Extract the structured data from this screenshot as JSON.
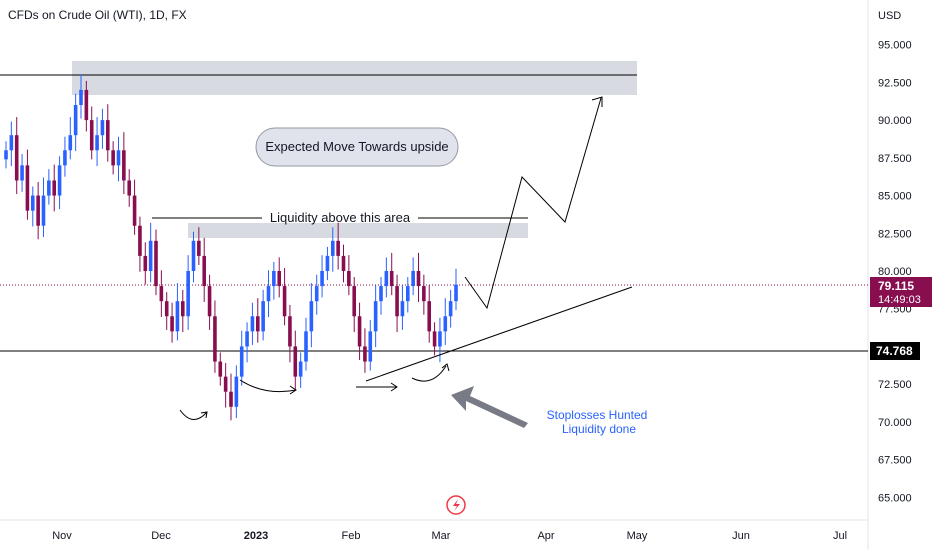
{
  "header": {
    "title": "CFDs on Crude Oil (WTI), 1D, FX"
  },
  "axis": {
    "currency": "USD",
    "y_ticks": [
      "95.000",
      "92.500",
      "90.000",
      "87.500",
      "85.000",
      "82.500",
      "80.000",
      "77.500",
      "72.500",
      "70.000",
      "67.500",
      "65.000"
    ],
    "x_ticks": [
      "Nov",
      "Dec",
      "2023",
      "Feb",
      "Mar",
      "Apr",
      "May",
      "Jun",
      "Jul"
    ]
  },
  "price_labels": {
    "current_price": "79.115",
    "countdown": "14:49:03",
    "level": "74.768"
  },
  "annotations": {
    "expected_move": "Expected Move Towards upside",
    "liquidity": "Liquidity above this area",
    "stoploss_line1": "Stoplosses Hunted",
    "stoploss_line2": "Liquidity done"
  },
  "colors": {
    "up": "#2962ff",
    "down": "#880e4f",
    "current_price_bg": "#880e4f",
    "label_bg": "#000000",
    "arrow": "#787b86",
    "callout_text": "#2962ff"
  },
  "chart_data": {
    "type": "candlestick",
    "title": "CFDs on Crude Oil (WTI), 1D, FX",
    "ylabel": "USD",
    "ylim": [
      63.5,
      97
    ],
    "x_ticks": [
      "Nov",
      "Dec",
      "2023",
      "Feb",
      "Mar",
      "Apr",
      "May",
      "Jun",
      "Jul"
    ],
    "close_series": [
      88,
      89,
      86,
      87,
      84,
      85,
      83,
      85,
      86,
      85,
      87,
      88,
      89,
      91,
      92,
      90,
      88,
      89,
      90,
      88,
      87,
      88,
      86,
      85,
      83,
      81,
      80,
      82,
      79,
      78,
      77,
      76,
      78,
      77,
      80,
      82,
      81,
      79,
      77,
      74,
      73,
      72,
      71,
      73,
      75,
      76,
      77,
      76,
      78,
      79,
      80,
      79,
      77,
      75,
      73,
      74,
      76,
      78,
      79,
      80,
      81,
      82,
      81,
      80,
      79,
      77,
      75,
      74,
      76,
      78,
      79,
      80,
      79,
      77,
      78,
      79,
      80,
      79,
      78,
      76,
      75,
      76,
      77,
      78,
      79.1
    ],
    "horizontal_levels": [
      93.0,
      74.768
    ],
    "current_price": 79.115,
    "zones": [
      {
        "label": "",
        "ymin": 91.8,
        "ymax": 93.8
      },
      {
        "label": "Liquidity above this area",
        "ymin": 82.2,
        "ymax": 83.2
      }
    ]
  }
}
